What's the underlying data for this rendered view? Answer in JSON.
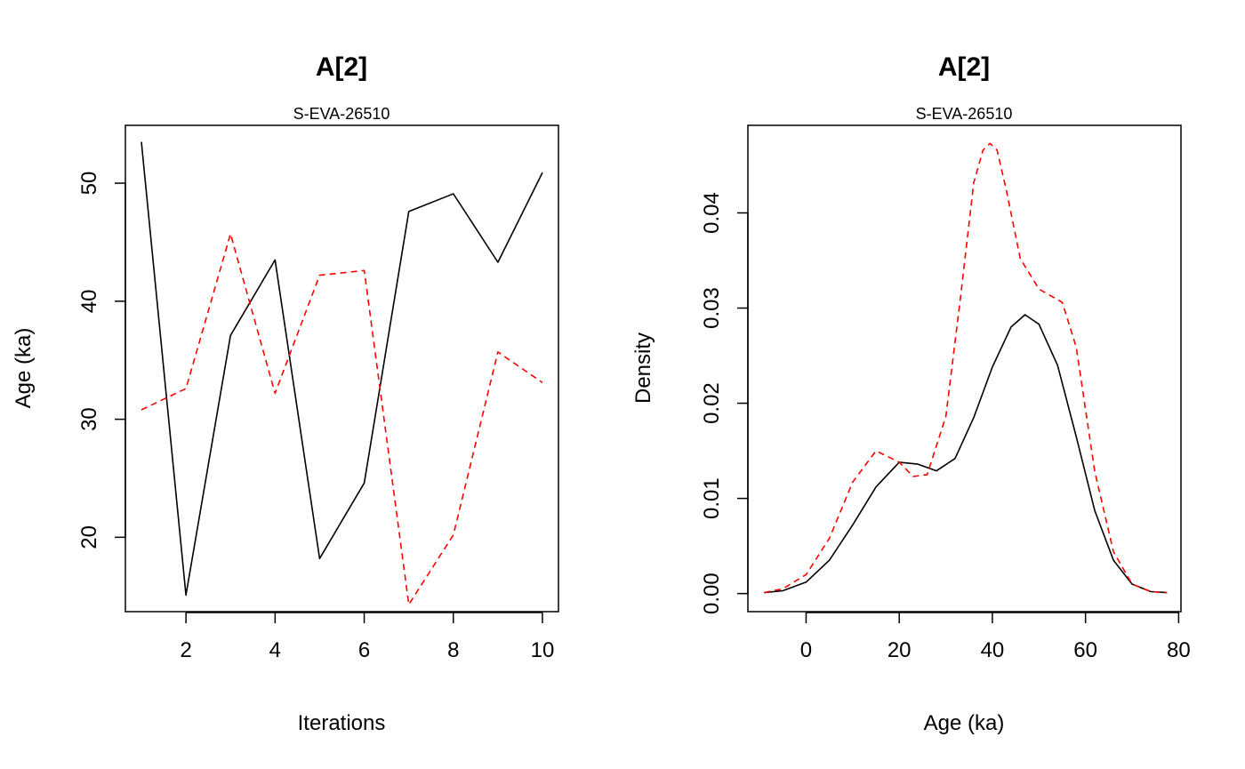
{
  "chart_data": [
    {
      "type": "line",
      "title": "A[2]",
      "subtitle": "S-EVA-26510",
      "xlabel": "Iterations",
      "ylabel": "Age (ka)",
      "xlim": [
        0.64,
        10.36
      ],
      "ylim": [
        13.7,
        54.9
      ],
      "xticks": [
        2,
        4,
        6,
        8,
        10
      ],
      "xtick_labels": [
        "2",
        "4",
        "6",
        "8",
        "10"
      ],
      "yticks": [
        20,
        30,
        40,
        50
      ],
      "ytick_labels": [
        "20",
        "30",
        "40",
        "50"
      ],
      "grid": false,
      "series": [
        {
          "color": "#000000",
          "dash": "solid",
          "x": [
            1,
            2,
            3,
            4,
            5,
            6,
            7,
            8,
            9,
            10
          ],
          "values": [
            53.5,
            15.1,
            37.1,
            43.5,
            18.2,
            24.6,
            47.6,
            49.1,
            43.3,
            50.9
          ]
        },
        {
          "color": "#ff0000",
          "dash": "dashed",
          "x": [
            1,
            2,
            3,
            4,
            5,
            6,
            7,
            8,
            9,
            10
          ],
          "values": [
            30.8,
            32.6,
            45.7,
            32.2,
            42.2,
            42.6,
            14.3,
            20.2,
            35.7,
            33.1
          ]
        }
      ]
    },
    {
      "type": "line",
      "title": "A[2]",
      "subtitle": "S-EVA-26510",
      "xlabel": "Age (ka)",
      "ylabel": "Density",
      "xlim": [
        -12.5,
        80.5
      ],
      "ylim": [
        -0.0019,
        0.0492
      ],
      "xticks": [
        0,
        20,
        40,
        60,
        80
      ],
      "xtick_labels": [
        "0",
        "20",
        "40",
        "60",
        "80"
      ],
      "yticks": [
        0.0,
        0.01,
        0.02,
        0.03,
        0.04
      ],
      "ytick_labels": [
        "0.00",
        "0.01",
        "0.02",
        "0.03",
        "0.04"
      ],
      "grid": false,
      "series": [
        {
          "color": "#000000",
          "dash": "solid",
          "x": [
            -9,
            -5,
            0,
            5,
            10,
            15,
            20,
            24,
            28,
            32,
            36,
            40,
            44,
            47,
            50,
            54,
            58,
            62,
            66,
            70,
            74,
            77.5
          ],
          "values": [
            0.0001,
            0.0003,
            0.0012,
            0.0035,
            0.0072,
            0.0112,
            0.0138,
            0.0136,
            0.0129,
            0.0142,
            0.0185,
            0.0238,
            0.028,
            0.0293,
            0.0283,
            0.024,
            0.0165,
            0.0087,
            0.0035,
            0.001,
            0.0002,
            0.0001
          ]
        },
        {
          "color": "#ff0000",
          "dash": "dashed",
          "x": [
            -9,
            -5,
            0,
            5,
            10,
            15,
            20,
            23,
            26,
            30,
            33,
            36,
            38,
            39.5,
            41,
            43,
            46,
            50,
            55,
            58,
            62,
            66,
            70,
            74,
            77.5
          ],
          "values": [
            0.0001,
            0.0005,
            0.002,
            0.0058,
            0.0117,
            0.015,
            0.0138,
            0.0123,
            0.0125,
            0.0186,
            0.0305,
            0.0432,
            0.0466,
            0.0473,
            0.0466,
            0.0424,
            0.0352,
            0.032,
            0.0306,
            0.0259,
            0.0128,
            0.0044,
            0.001,
            0.0002,
            0.0001
          ]
        }
      ]
    }
  ]
}
